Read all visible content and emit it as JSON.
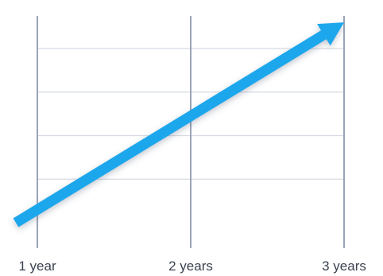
{
  "chart_data": {
    "type": "line",
    "x_ticks": [
      {
        "x": 1,
        "label": "1 year"
      },
      {
        "x": 2,
        "label": "2 years"
      },
      {
        "x": 3,
        "label": "3 years"
      }
    ],
    "y_gridlines": [
      0.25,
      0.5,
      0.75,
      1.0
    ],
    "ylim": [
      0,
      1.15
    ],
    "xlim": [
      0.86,
      3.0
    ],
    "series": [
      {
        "points": [
          [
            0.86,
            0.0
          ],
          [
            3.0,
            1.15
          ]
        ],
        "color": "#1aa7ec",
        "arrowhead": true
      }
    ],
    "grid": true,
    "colors": {
      "vertical_grid": "#9aa3b8",
      "horizontal_grid": "#d7dbe3",
      "tick_text": "#3c4250"
    }
  }
}
